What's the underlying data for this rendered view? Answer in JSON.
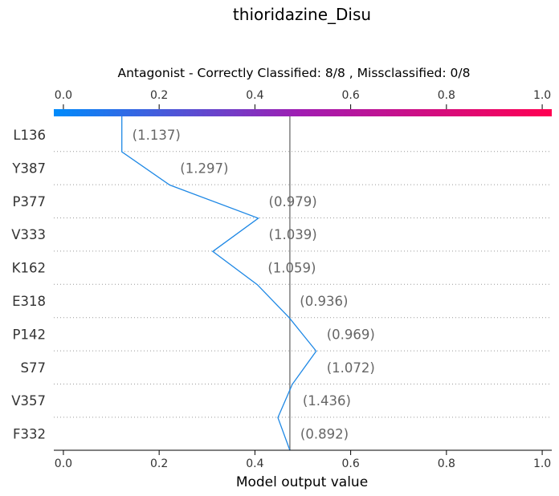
{
  "chart_data": {
    "type": "line",
    "title": "thioridazine_Disu",
    "subtitle": "Antagonist - Correctly Classified: 8/8 , Missclassified: 0/8",
    "xlabel": "Model output value",
    "xlim": [
      -0.02,
      1.02
    ],
    "x_ticks": [
      "0.0",
      "0.2",
      "0.4",
      "0.6",
      "0.8",
      "1.0"
    ],
    "x_tick_values": [
      0.0,
      0.2,
      0.4,
      0.6,
      0.8,
      1.0
    ],
    "base_value": 0.473,
    "colorbar": {
      "from": "#008bfb",
      "mid": "#a21cb1",
      "to": "#ff0052"
    },
    "line_color": "#1e88e5",
    "features": [
      "L136",
      "Y387",
      "P377",
      "V333",
      "K162",
      "E318",
      "P142",
      "S77",
      "V357",
      "F332"
    ],
    "feature_values": [
      "(1.137)",
      "(1.297)",
      "(0.979)",
      "(1.039)",
      "(1.059)",
      "(0.936)",
      "(0.969)",
      "(1.072)",
      "(1.436)",
      "(0.892)"
    ],
    "path_x": [
      0.473,
      0.448,
      0.478,
      0.528,
      0.472,
      0.405,
      0.312,
      0.407,
      0.222,
      0.122
    ],
    "grid": "dotted horizontal separators"
  }
}
